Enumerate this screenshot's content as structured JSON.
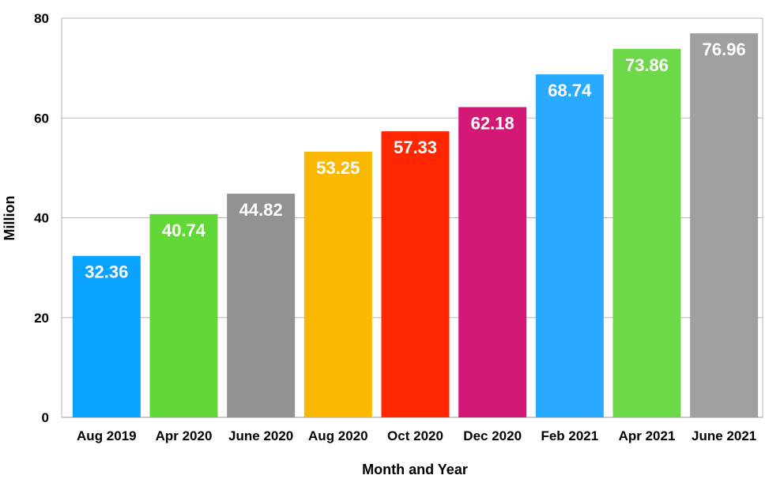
{
  "chart_data": {
    "type": "bar",
    "title": "",
    "xlabel": "Month and Year",
    "ylabel": "Million",
    "ylim": [
      0,
      80
    ],
    "yticks": [
      0,
      20,
      40,
      60,
      80
    ],
    "grid": true,
    "legend": "none",
    "categories": [
      "Aug 2019",
      "Apr 2020",
      "June 2020",
      "Aug 2020",
      "Oct 2020",
      "Dec 2020",
      "Feb 2021",
      "Apr 2021",
      "June 2021"
    ],
    "values": [
      32.36,
      40.74,
      44.82,
      53.25,
      57.33,
      62.18,
      68.74,
      73.86,
      76.96
    ],
    "value_labels": [
      "32.36",
      "40.74",
      "44.82",
      "53.25",
      "57.33",
      "62.18",
      "68.74",
      "73.86",
      "76.96"
    ],
    "colors": [
      "#0aa2ff",
      "#61d836",
      "#929292",
      "#fbb800",
      "#ff2600",
      "#d31876",
      "#27aaff",
      "#6ed84b",
      "#a0a0a0"
    ]
  }
}
